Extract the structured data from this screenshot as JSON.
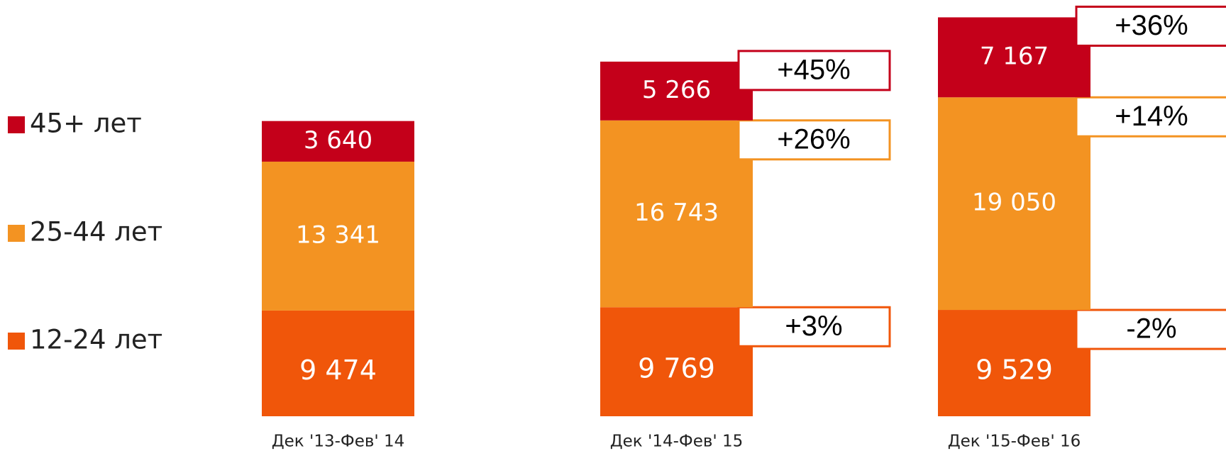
{
  "chart_data": {
    "type": "stacked_bar",
    "categories": [
      "Дек '13-Фев' 14",
      "Дек '14-Фев' 15",
      "Дек '15-Фев' 16"
    ],
    "series": [
      {
        "name": "12-24 лет",
        "color": "#f0560a",
        "values": [
          9474,
          9769,
          9529
        ],
        "value_labels": [
          "9 474",
          "9 769",
          "9 529"
        ],
        "change_labels": [
          null,
          "+3%",
          "-2%"
        ]
      },
      {
        "name": "25-44 лет",
        "color": "#f39322",
        "values": [
          13341,
          16743,
          19050
        ],
        "value_labels": [
          "13 341",
          "16 743",
          "19 050"
        ],
        "change_labels": [
          null,
          "+26%",
          "+14%"
        ]
      },
      {
        "name": "45+ лет",
        "color": "#c4001a",
        "values": [
          3640,
          5266,
          7167
        ],
        "value_labels": [
          "3 640",
          "5 266",
          "7 167"
        ],
        "change_labels": [
          null,
          "+45%",
          "+36%"
        ]
      }
    ],
    "ylim": [
      0,
      37300
    ]
  }
}
